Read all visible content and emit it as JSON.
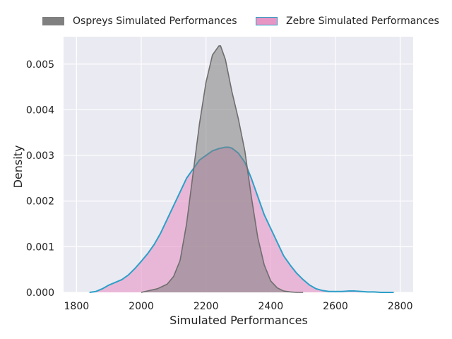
{
  "chart_data": {
    "type": "area",
    "title": "",
    "xlabel": "Simulated Performances",
    "ylabel": "Density",
    "xlim": [
      1760,
      2840
    ],
    "ylim": [
      0,
      0.0056
    ],
    "x_ticks": [
      "1800",
      "2000",
      "2200",
      "2400",
      "2600",
      "2800"
    ],
    "y_ticks": [
      "0.000",
      "0.001",
      "0.002",
      "0.003",
      "0.004",
      "0.005"
    ],
    "grid": true,
    "legend_position": "top",
    "series": [
      {
        "name": "Ospreys Simulated Performances",
        "fill_color": "#808080",
        "line_color": "#6e6e6e",
        "x": [
          2000,
          2050,
          2080,
          2100,
          2120,
          2140,
          2160,
          2180,
          2200,
          2220,
          2240,
          2245,
          2260,
          2280,
          2300,
          2320,
          2340,
          2360,
          2380,
          2400,
          2420,
          2440,
          2460,
          2480,
          2500
        ],
        "y": [
          0.0,
          8e-05,
          0.00018,
          0.00035,
          0.0007,
          0.0015,
          0.0026,
          0.0037,
          0.0046,
          0.0052,
          0.0054,
          0.0054,
          0.0051,
          0.0044,
          0.0038,
          0.0031,
          0.0021,
          0.0012,
          0.0006,
          0.00025,
          0.0001,
          3e-05,
          1e-05,
          0.0,
          0.0
        ]
      },
      {
        "name": "Zebre Simulated Performances",
        "fill_color": "#e695c5",
        "line_color": "#2ca0c8",
        "x": [
          1840,
          1860,
          1880,
          1900,
          1920,
          1940,
          1960,
          1980,
          2000,
          2020,
          2040,
          2060,
          2080,
          2100,
          2120,
          2140,
          2160,
          2180,
          2200,
          2220,
          2240,
          2260,
          2270,
          2280,
          2300,
          2320,
          2340,
          2360,
          2380,
          2400,
          2420,
          2440,
          2460,
          2480,
          2500,
          2520,
          2540,
          2560,
          2580,
          2600,
          2620,
          2640,
          2660,
          2680,
          2700,
          2720,
          2740,
          2760,
          2780
        ],
        "y": [
          0.0,
          2e-05,
          8e-05,
          0.00016,
          0.00022,
          0.00028,
          0.00038,
          0.00052,
          0.00068,
          0.00085,
          0.00105,
          0.0013,
          0.0016,
          0.0019,
          0.0022,
          0.0025,
          0.0027,
          0.0029,
          0.003,
          0.0031,
          0.00315,
          0.00318,
          0.00318,
          0.00316,
          0.00305,
          0.00285,
          0.0025,
          0.0021,
          0.0017,
          0.0014,
          0.0011,
          0.0008,
          0.0006,
          0.00042,
          0.00028,
          0.00016,
          8e-05,
          4e-05,
          2e-05,
          2e-05,
          2e-05,
          3e-05,
          3e-05,
          2e-05,
          1e-05,
          1e-05,
          0.0,
          0.0,
          0.0
        ]
      }
    ]
  }
}
